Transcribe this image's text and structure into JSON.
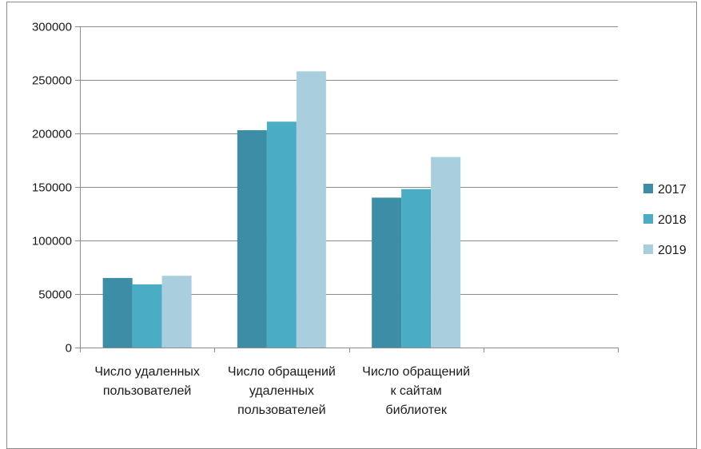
{
  "chart_data": {
    "type": "bar",
    "categories": [
      [
        "Число удаленных",
        "пользователей"
      ],
      [
        "Число обращений",
        "удаленных",
        "пользователей"
      ],
      [
        "Число обращений",
        "к сайтам",
        "библиотек"
      ],
      [
        ""
      ]
    ],
    "series": [
      {
        "name": "2017",
        "color": "#3b8ea5",
        "values": [
          65000,
          203000,
          140000,
          null
        ]
      },
      {
        "name": "2018",
        "color": "#4bacc6",
        "values": [
          59000,
          211000,
          148000,
          null
        ]
      },
      {
        "name": "2019",
        "color": "#a9cede",
        "values": [
          67000,
          258000,
          178000,
          null
        ]
      }
    ],
    "ylim": [
      0,
      300000
    ],
    "yticks": [
      "0",
      "50000",
      "100000",
      "150000",
      "200000",
      "250000",
      "300000"
    ],
    "grid": true,
    "legend": "right",
    "title": "",
    "xlabel": "",
    "ylabel": ""
  }
}
